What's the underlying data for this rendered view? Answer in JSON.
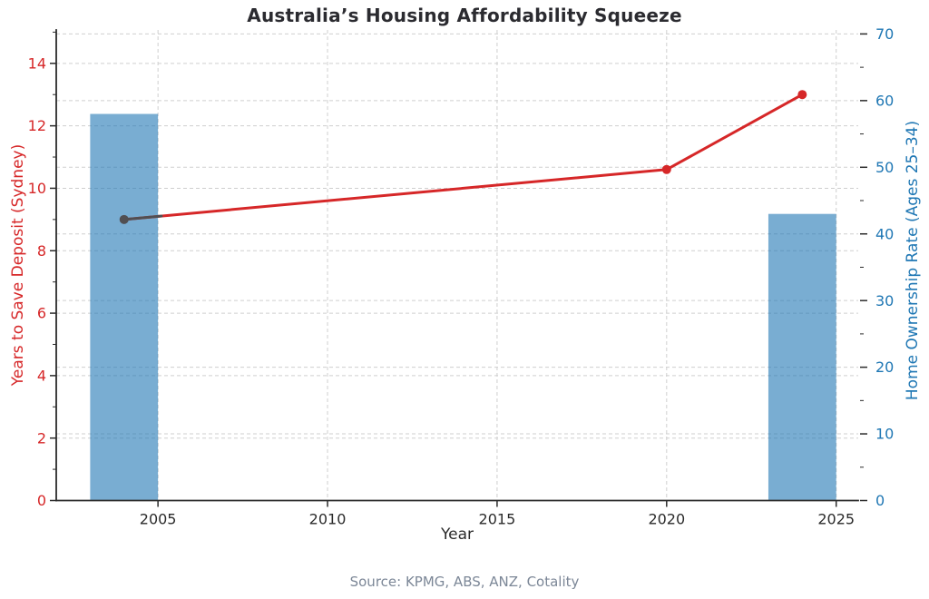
{
  "figure": {
    "title": "Australia’s Housing Affordability Squeeze",
    "source": "Source: KPMG, ABS, ANZ, Cotality"
  },
  "chart_data": {
    "type": "combo-bar-line-dual-axis",
    "title": "Australia’s Housing Affordability Squeeze",
    "xlabel": "Year",
    "source": "Source: KPMG, ABS, ANZ, Cotality",
    "grid": true,
    "legend": "none",
    "x_ticks": [
      2005,
      2010,
      2015,
      2020,
      2025
    ],
    "xlim": [
      2002,
      2025.65
    ],
    "left_axis": {
      "label": "Years to Save Deposit (Sydney)",
      "color": "#d62728",
      "lim": [
        0,
        15.07
      ],
      "ticks": [
        0,
        2,
        4,
        6,
        8,
        10,
        12,
        14
      ],
      "minor_ticks": [
        1,
        3,
        5,
        7,
        9,
        11,
        13,
        15
      ]
    },
    "right_axis": {
      "label": "Home Ownership Rate (Ages 25–34)",
      "color": "#1f77b4",
      "lim": [
        0,
        70.6
      ],
      "ticks": [
        0,
        10,
        20,
        30,
        40,
        50,
        60,
        70
      ],
      "minor_ticks": [
        5,
        15,
        25,
        35,
        45,
        55,
        65
      ]
    },
    "series": [
      {
        "name": "Home Ownership Rate (Ages 25–34)",
        "type": "bar",
        "axis": "right",
        "color": "#1f77b4",
        "opacity": 0.6,
        "bar_width_years": 2,
        "x": [
          2004,
          2024
        ],
        "values": [
          58,
          43
        ]
      },
      {
        "name": "Years to Save Deposit (Sydney)",
        "type": "line",
        "axis": "left",
        "color": "#d62728",
        "line_width": 3,
        "marker": "circle",
        "marker_radius": 5,
        "x": [
          2004,
          2020,
          2024
        ],
        "values": [
          9.0,
          10.6,
          13.0
        ],
        "first_point_muted_color": "#514f52",
        "muted_segment_until_year": 2005.1
      }
    ]
  },
  "style": {
    "background": "#ffffff",
    "title_color": "#2b2b30",
    "axis_text_color": "#2b2b2b",
    "spine_color": "#2b2b2b",
    "grid_color": "#cfcfcf",
    "source_color": "#7c8797",
    "red_accent": "#d62728",
    "blue_accent": "#1f77b4"
  }
}
